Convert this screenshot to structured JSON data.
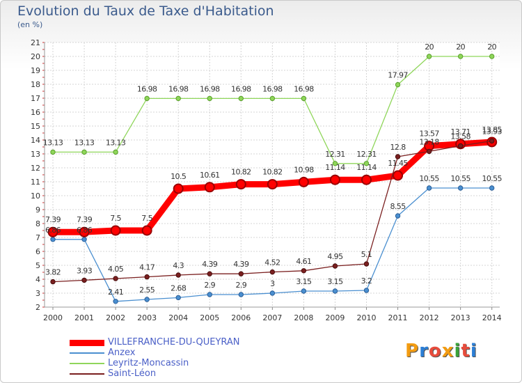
{
  "header": {
    "title": "Evolution du Taux de Taxe d'Habitation",
    "unit": "(en %)"
  },
  "logo": {
    "text": "Proxiti",
    "letters": [
      "P",
      "r",
      "o",
      "x",
      "i",
      "t",
      "i"
    ],
    "colors": [
      "#f39c12",
      "#2c7fd6",
      "#e74c3c",
      "#f39c12",
      "#3aa33a",
      "#e74c3c",
      "#2c7fd6"
    ]
  },
  "chart_data": {
    "type": "line",
    "title": "Evolution du Taux de Taxe d'Habitation",
    "ylabel": "(en %)",
    "xlabel": "",
    "ylim": [
      2,
      21
    ],
    "grid": true,
    "legend_position": "bottom-left",
    "categories": [
      "2000",
      "2001",
      "2002",
      "2003",
      "2004",
      "2005",
      "2006",
      "2007",
      "2008",
      "2009",
      "2010",
      "2011",
      "2012",
      "2013",
      "2014"
    ],
    "series": [
      {
        "name": "VILLEFRANCHE-DU-QUEYRAN",
        "color": "#ff0000",
        "values": [
          7.39,
          7.39,
          7.5,
          7.5,
          10.5,
          10.61,
          10.82,
          10.82,
          10.98,
          11.14,
          11.14,
          11.45,
          13.57,
          13.71,
          13.85
        ]
      },
      {
        "name": "Anzex",
        "color": "#4a8fd0",
        "values": [
          6.86,
          6.86,
          2.41,
          2.55,
          2.68,
          2.9,
          2.9,
          3,
          3.15,
          3.15,
          3.2,
          8.55,
          10.55,
          10.55,
          10.55
        ]
      },
      {
        "name": "Leyritz-Moncassin",
        "color": "#8fd65a",
        "values": [
          13.13,
          13.13,
          13.13,
          16.98,
          16.98,
          16.98,
          16.98,
          16.98,
          16.98,
          12.31,
          12.31,
          17.97,
          20,
          20,
          20
        ]
      },
      {
        "name": "Saint-Léon",
        "color": "#7a1f1f",
        "values": [
          3.82,
          3.93,
          4.05,
          4.17,
          4.3,
          4.39,
          4.39,
          4.52,
          4.61,
          4.95,
          5.1,
          12.8,
          13.18,
          13.58,
          13.93
        ]
      }
    ],
    "data_labels": [
      [
        "7.39",
        "7.39",
        "7.5",
        "7.5",
        "10.5",
        "10.61",
        "10.82",
        "10.82",
        "10.98",
        "11.14",
        "11.14",
        "11.45",
        "13.57",
        "13.71",
        "13.85"
      ],
      [
        "6.86",
        "6.86",
        "2.41",
        "2.55",
        "2.68",
        "2.9",
        "2.9",
        "3",
        "3.15",
        "3.15",
        "3.2",
        "8.55",
        "10.55",
        "10.55",
        "10.55"
      ],
      [
        "13.13",
        "13.13",
        "13.13",
        "16.98",
        "16.98",
        "16.98",
        "16.98",
        "16.98",
        "16.98",
        "12.31",
        "12.31",
        "17.97",
        "20",
        "20",
        "20"
      ],
      [
        "3.82",
        "3.93",
        "4.05",
        "4.17",
        "4.3",
        "4.39",
        "4.39",
        "4.52",
        "4.61",
        "4.95",
        "5.1",
        "12.8",
        "13.18",
        "13.58",
        "13.93"
      ]
    ],
    "yticks": [
      2,
      3,
      4,
      5,
      6,
      7,
      8,
      9,
      10,
      11,
      12,
      13,
      14,
      15,
      16,
      17,
      18,
      19,
      20,
      21
    ]
  }
}
